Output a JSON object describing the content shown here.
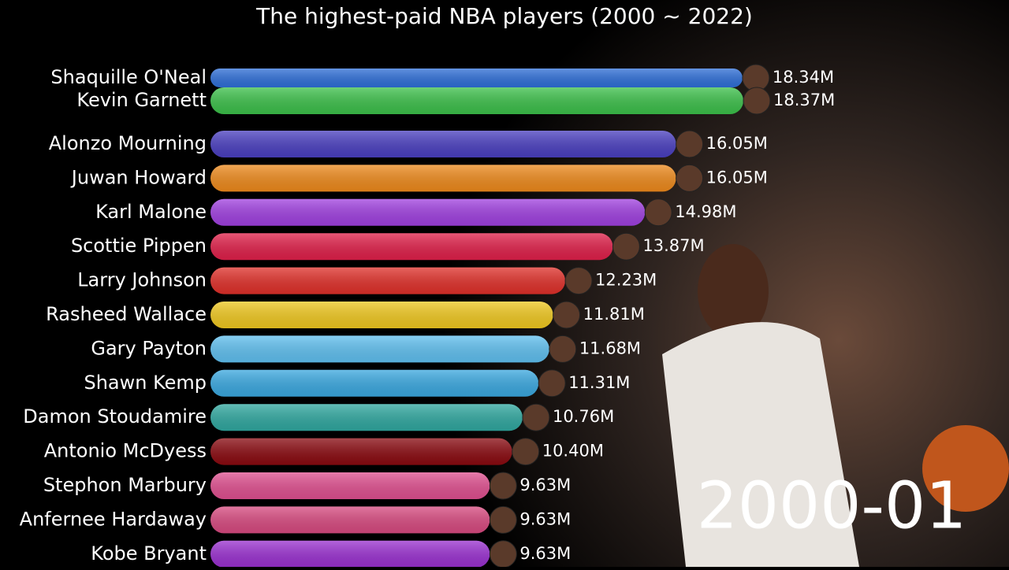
{
  "chart_data": {
    "type": "bar",
    "orientation": "horizontal",
    "title": "The highest-paid NBA players (2000 ~ 2022)",
    "period": "2000-01",
    "categories": [
      "Shaquille O'Neal",
      "Kevin Garnett",
      "Alonzo Mourning",
      "Juwan Howard",
      "Karl Malone",
      "Scottie Pippen",
      "Larry Johnson",
      "Rasheed Wallace",
      "Gary Payton",
      "Shawn Kemp",
      "Damon Stoudamire",
      "Antonio McDyess",
      "Stephon Marbury",
      "Anfernee Hardaway",
      "Kobe Bryant"
    ],
    "values": [
      18.34,
      18.37,
      16.05,
      16.05,
      14.98,
      13.87,
      12.23,
      11.81,
      11.68,
      11.31,
      10.76,
      10.4,
      9.63,
      9.63,
      9.63
    ],
    "value_labels": [
      "18.34M",
      "18.37M",
      "16.05M",
      "16.05M",
      "14.98M",
      "13.87M",
      "12.23M",
      "11.81M",
      "11.68M",
      "11.31M",
      "10.76M",
      "10.40M",
      "9.63M",
      "9.63M",
      "9.63M"
    ],
    "colors": [
      "#2f6fd8",
      "#3cc04a",
      "#4a3fc0",
      "#ee8a1c",
      "#a040e0",
      "#e0204a",
      "#e0302a",
      "#f0c820",
      "#60c0f0",
      "#3aa8e0",
      "#30a8a0",
      "#8a0a10",
      "#e05090",
      "#d84a80",
      "#9a30d0"
    ]
  }
}
